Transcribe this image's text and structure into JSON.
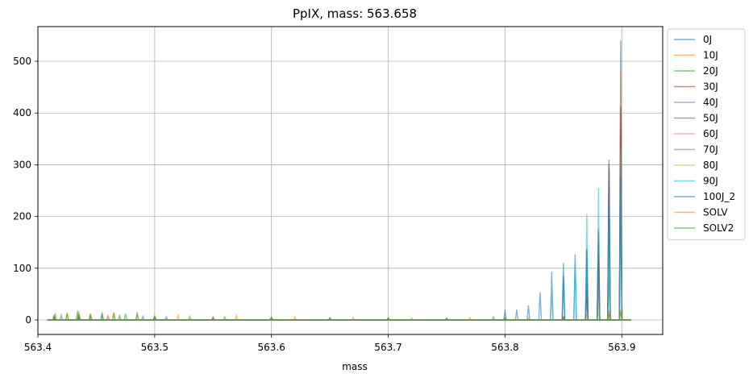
{
  "chart_data": {
    "type": "line",
    "title": "PpIX, mass: 563.658",
    "xlabel": "mass",
    "ylabel": "",
    "xlim": [
      563.4,
      563.935
    ],
    "ylim": [
      -28,
      567
    ],
    "x_ticks": [
      {
        "value": 563.4,
        "label": "563.4"
      },
      {
        "value": 563.5,
        "label": "563.5"
      },
      {
        "value": 563.6,
        "label": "563.6"
      },
      {
        "value": 563.7,
        "label": "563.7"
      },
      {
        "value": 563.8,
        "label": "563.8"
      },
      {
        "value": 563.9,
        "label": "563.9"
      }
    ],
    "y_ticks": [
      {
        "value": 0,
        "label": "0"
      },
      {
        "value": 100,
        "label": "100"
      },
      {
        "value": 200,
        "label": "200"
      },
      {
        "value": 300,
        "label": "300"
      },
      {
        "value": 400,
        "label": "400"
      },
      {
        "value": 500,
        "label": "500"
      }
    ],
    "grid": true,
    "legend_position": "outside-top-right",
    "series": [
      {
        "name": "0J",
        "color": "#1f77b4",
        "x": [
          563.414,
          563.42,
          563.435,
          563.445,
          563.455,
          563.47,
          563.49,
          563.51,
          563.55,
          563.6,
          563.65,
          563.7,
          563.75,
          563.79,
          563.8,
          563.81,
          563.82,
          563.83,
          563.84,
          563.85,
          563.86,
          563.87,
          563.88,
          563.889,
          563.899
        ],
        "y": [
          8,
          9,
          12,
          7,
          9,
          8,
          7,
          6,
          5,
          4,
          4,
          3,
          3,
          6,
          20,
          20,
          28,
          54,
          93,
          110,
          127,
          137,
          175,
          302,
          540
        ]
      },
      {
        "name": "10J",
        "color": "#ff7f0e",
        "x": [
          563.415,
          563.425,
          563.435,
          563.445,
          563.465,
          563.485,
          563.52,
          563.57,
          563.62,
          563.67,
          563.72,
          563.77,
          563.82,
          563.85,
          563.87,
          563.88,
          563.889,
          563.899
        ],
        "y": [
          13,
          14,
          16,
          12,
          15,
          10,
          9,
          8,
          6,
          5,
          4,
          4,
          4,
          6,
          10,
          14,
          18,
          480
        ]
      },
      {
        "name": "20J",
        "color": "#2ca02c",
        "x": [
          563.414,
          563.425,
          563.434,
          563.445,
          563.455,
          563.465,
          563.475,
          563.485,
          563.5,
          563.53,
          563.56,
          563.6,
          563.65,
          563.7,
          563.75,
          563.8,
          563.85,
          563.889,
          563.899
        ],
        "y": [
          10,
          12,
          18,
          11,
          15,
          13,
          12,
          15,
          8,
          7,
          6,
          5,
          4,
          4,
          4,
          3,
          4,
          80,
          360
        ]
      },
      {
        "name": "30J",
        "color": "#d62728",
        "x": [
          563.414,
          563.435,
          563.46,
          563.5,
          563.55,
          563.6,
          563.7,
          563.8,
          563.85,
          563.87,
          563.88,
          563.889,
          563.899
        ],
        "y": [
          7,
          10,
          8,
          6,
          5,
          4,
          3,
          3,
          5,
          40,
          120,
          310,
          412
        ]
      },
      {
        "name": "40J",
        "color": "#9467bd",
        "x": [
          563.414,
          563.435,
          563.5,
          563.6,
          563.7,
          563.8,
          563.87,
          563.88,
          563.889,
          563.899
        ],
        "y": [
          6,
          9,
          5,
          4,
          3,
          3,
          60,
          110,
          260,
          300
        ]
      },
      {
        "name": "50J",
        "color": "#8c564b",
        "x": [
          563.414,
          563.435,
          563.5,
          563.6,
          563.7,
          563.8,
          563.87,
          563.88,
          563.889,
          563.899
        ],
        "y": [
          6,
          8,
          5,
          4,
          3,
          3,
          70,
          130,
          290,
          400
        ]
      },
      {
        "name": "60J",
        "color": "#e377c2",
        "x": [
          563.414,
          563.435,
          563.5,
          563.6,
          563.7,
          563.8,
          563.88,
          563.889,
          563.899
        ],
        "y": [
          5,
          7,
          5,
          4,
          3,
          3,
          60,
          200,
          250
        ]
      },
      {
        "name": "70J",
        "color": "#7f7f7f",
        "x": [
          563.414,
          563.435,
          563.5,
          563.6,
          563.7,
          563.8,
          563.88,
          563.889,
          563.899
        ],
        "y": [
          5,
          7,
          5,
          4,
          3,
          3,
          80,
          240,
          270
        ]
      },
      {
        "name": "80J",
        "color": "#bcbd22",
        "x": [
          563.414,
          563.435,
          563.47,
          563.5,
          563.6,
          563.7,
          563.8,
          563.88,
          563.889,
          563.899
        ],
        "y": [
          9,
          11,
          10,
          7,
          5,
          4,
          3,
          40,
          150,
          200
        ]
      },
      {
        "name": "90J",
        "color": "#17becf",
        "x": [
          563.414,
          563.435,
          563.5,
          563.6,
          563.7,
          563.8,
          563.84,
          563.85,
          563.86,
          563.87,
          563.88,
          563.889,
          563.899
        ],
        "y": [
          6,
          8,
          5,
          4,
          3,
          3,
          50,
          80,
          110,
          205,
          255,
          220,
          330
        ]
      },
      {
        "name": "100J_2",
        "color": "#1f77b4",
        "x": [
          563.414,
          563.435,
          563.5,
          563.6,
          563.7,
          563.8,
          563.85,
          563.87,
          563.88,
          563.889,
          563.899
        ],
        "y": [
          5,
          7,
          5,
          4,
          3,
          3,
          85,
          135,
          170,
          295,
          275
        ]
      },
      {
        "name": "SOLV",
        "color": "#ff7f0e",
        "x": [
          563.414,
          563.435,
          563.5,
          563.6,
          563.7,
          563.8,
          563.889,
          563.899
        ],
        "y": [
          4,
          5,
          4,
          3,
          3,
          2,
          15,
          20
        ]
      },
      {
        "name": "SOLV2",
        "color": "#2ca02c",
        "x": [
          563.414,
          563.435,
          563.5,
          563.6,
          563.7,
          563.8,
          563.889,
          563.899
        ],
        "y": [
          5,
          6,
          5,
          4,
          3,
          3,
          10,
          15
        ]
      }
    ]
  }
}
